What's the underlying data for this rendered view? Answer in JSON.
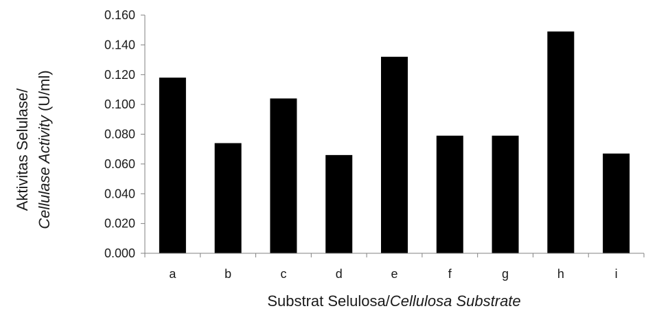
{
  "chart_data": {
    "type": "bar",
    "categories": [
      "a",
      "b",
      "c",
      "d",
      "e",
      "f",
      "g",
      "h",
      "i"
    ],
    "values": [
      0.118,
      0.074,
      0.104,
      0.066,
      0.132,
      0.079,
      0.079,
      0.149,
      0.067
    ],
    "ylim": [
      0,
      0.16
    ],
    "yticks": [
      "0.000",
      "0.020",
      "0.040",
      "0.060",
      "0.080",
      "0.100",
      "0.120",
      "0.140",
      "0.160"
    ],
    "xlabel": {
      "regular": "Substrat Selulosa/",
      "italic": "Cellulosa Substrate"
    },
    "ylabel": {
      "line1": "Aktivitas Selulase/",
      "line2_italic": "Cellulase Activity",
      "line2_regular": " (U/ml)"
    },
    "bar_color": "#000000",
    "axis_color": "#808080",
    "grid": false,
    "legend": "none"
  }
}
